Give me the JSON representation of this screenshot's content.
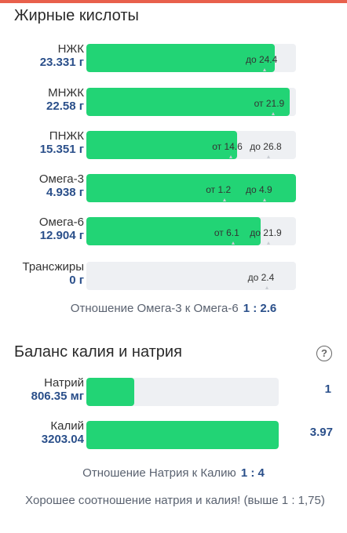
{
  "fatty_acids": {
    "title": "Жирные кислоты",
    "rows": [
      {
        "name": "НЖК",
        "value": "23.331 г",
        "fill_pct": 90,
        "refs": [
          {
            "text": "до 24.4",
            "pos_pct": 85
          }
        ]
      },
      {
        "name": "МНЖК",
        "value": "22.58 г",
        "fill_pct": 97,
        "refs": [
          {
            "text": "от 21.9",
            "pos_pct": 89
          }
        ]
      },
      {
        "name": "ПНЖК",
        "value": "15.351 г",
        "fill_pct": 72,
        "refs": [
          {
            "text": "от 14.6",
            "pos_pct": 69
          },
          {
            "text": "до 26.8",
            "pos_pct": 87
          }
        ]
      },
      {
        "name": "Омега-3",
        "value": "4.938 г",
        "fill_pct": 100,
        "refs": [
          {
            "text": "от 1.2",
            "pos_pct": 66
          },
          {
            "text": "до 4.9",
            "pos_pct": 85
          }
        ]
      },
      {
        "name": "Омега-6",
        "value": "12.904 г",
        "fill_pct": 83,
        "refs": [
          {
            "text": "от 6.1",
            "pos_pct": 70
          },
          {
            "text": "до 21.9",
            "pos_pct": 87
          }
        ]
      },
      {
        "name": "Трансжиры",
        "value": "0 г",
        "fill_pct": 0,
        "refs": [
          {
            "text": "до 2.4",
            "pos_pct": 86
          }
        ]
      }
    ],
    "ratio_label": "Отношение Омега-3 к Омега-6",
    "ratio_value": "1 : 2.6"
  },
  "balance": {
    "title": "Баланс калия и натрия",
    "help_icon": "question-circle-icon",
    "rows": [
      {
        "name": "Натрий",
        "value": "806.35 мг",
        "fill_pct": 25,
        "number": "1"
      },
      {
        "name": "Калий",
        "value": "3203.04",
        "fill_pct": 100,
        "number": "3.97"
      }
    ],
    "ratio_label": "Отношение Натрия к Калию",
    "ratio_value": "1 : 4",
    "note": "Хорошее соотношение натрия и калия! (выше 1 : 1,75)"
  },
  "colors": {
    "fill": "#22d475",
    "track": "#eef0f3",
    "value_text": "#2a4f8a",
    "top_strip": "#e8604c"
  }
}
